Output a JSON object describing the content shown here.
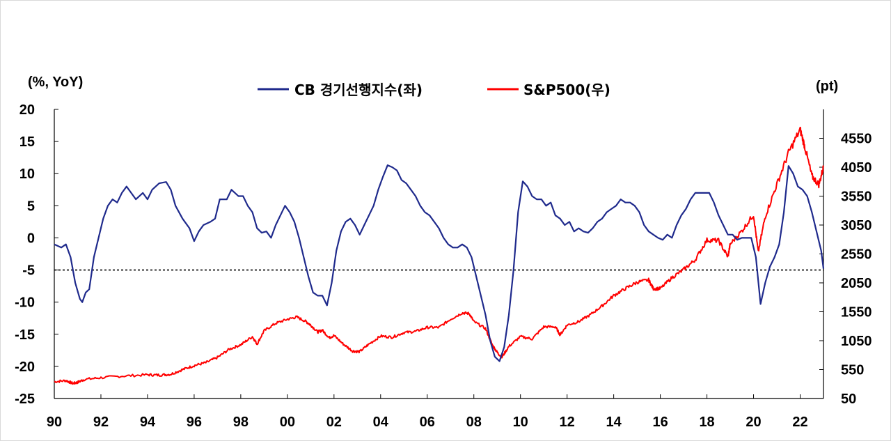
{
  "chart_data": {
    "type": "line",
    "left_unit": "(%, YoY)",
    "right_unit": "(pt)",
    "x_tick_labels": [
      "90",
      "92",
      "94",
      "96",
      "98",
      "00",
      "02",
      "04",
      "06",
      "08",
      "10",
      "12",
      "14",
      "16",
      "18",
      "20",
      "22"
    ],
    "x_range": [
      1990.0,
      2023.0
    ],
    "y_left_range": [
      -25,
      20
    ],
    "y_left_ticks": [
      20,
      15,
      10,
      5,
      0,
      -5,
      -10,
      -15,
      -20,
      -25
    ],
    "y_right_range": [
      50,
      5050
    ],
    "y_right_ticks": [
      4550,
      4050,
      3550,
      3050,
      2550,
      2050,
      1550,
      1050,
      550,
      50
    ],
    "reference_line": {
      "axis": "left",
      "value": -5,
      "style": "dotted"
    },
    "legend_position": "top-center",
    "colors": {
      "cb_lei": "#1f2a8c",
      "sp500": "#ff0000"
    },
    "series": [
      {
        "name": "CB 경기선행지수(좌)",
        "axis": "left",
        "color": "#1f2a8c",
        "points": [
          [
            1990.0,
            -1
          ],
          [
            1990.3,
            -1.5
          ],
          [
            1990.5,
            -1
          ],
          [
            1990.7,
            -3
          ],
          [
            1990.9,
            -7
          ],
          [
            1991.1,
            -9.5
          ],
          [
            1991.2,
            -10
          ],
          [
            1991.35,
            -8.5
          ],
          [
            1991.5,
            -8
          ],
          [
            1991.7,
            -3
          ],
          [
            1991.9,
            0
          ],
          [
            1992.1,
            3
          ],
          [
            1992.3,
            5
          ],
          [
            1992.5,
            6
          ],
          [
            1992.7,
            5.5
          ],
          [
            1992.9,
            7
          ],
          [
            1993.1,
            8
          ],
          [
            1993.3,
            7
          ],
          [
            1993.5,
            6
          ],
          [
            1993.8,
            7
          ],
          [
            1994.0,
            6
          ],
          [
            1994.2,
            7.5
          ],
          [
            1994.5,
            8.5
          ],
          [
            1994.8,
            8.7
          ],
          [
            1995.0,
            7.5
          ],
          [
            1995.2,
            5
          ],
          [
            1995.5,
            3
          ],
          [
            1995.8,
            1.5
          ],
          [
            1996.0,
            -0.5
          ],
          [
            1996.2,
            1
          ],
          [
            1996.4,
            2
          ],
          [
            1996.7,
            2.5
          ],
          [
            1996.9,
            3
          ],
          [
            1997.1,
            6
          ],
          [
            1997.4,
            6
          ],
          [
            1997.6,
            7.5
          ],
          [
            1997.9,
            6.5
          ],
          [
            1998.1,
            6.5
          ],
          [
            1998.3,
            5
          ],
          [
            1998.5,
            4
          ],
          [
            1998.7,
            1.5
          ],
          [
            1998.9,
            0.8
          ],
          [
            1999.1,
            1
          ],
          [
            1999.3,
            0
          ],
          [
            1999.5,
            2
          ],
          [
            1999.7,
            3.5
          ],
          [
            1999.9,
            5
          ],
          [
            2000.1,
            4
          ],
          [
            2000.3,
            2.5
          ],
          [
            2000.5,
            0
          ],
          [
            2000.7,
            -3
          ],
          [
            2000.9,
            -6
          ],
          [
            2001.1,
            -8.5
          ],
          [
            2001.3,
            -9
          ],
          [
            2001.5,
            -9
          ],
          [
            2001.7,
            -10.5
          ],
          [
            2001.9,
            -7
          ],
          [
            2002.1,
            -2
          ],
          [
            2002.3,
            1
          ],
          [
            2002.5,
            2.5
          ],
          [
            2002.7,
            3
          ],
          [
            2002.9,
            2
          ],
          [
            2003.1,
            0.5
          ],
          [
            2003.3,
            2
          ],
          [
            2003.5,
            3.5
          ],
          [
            2003.7,
            5
          ],
          [
            2003.9,
            7.5
          ],
          [
            2004.1,
            9.5
          ],
          [
            2004.3,
            11.3
          ],
          [
            2004.5,
            11
          ],
          [
            2004.7,
            10.5
          ],
          [
            2004.9,
            9
          ],
          [
            2005.1,
            8.5
          ],
          [
            2005.3,
            7.5
          ],
          [
            2005.5,
            6.5
          ],
          [
            2005.7,
            5
          ],
          [
            2005.9,
            4
          ],
          [
            2006.1,
            3.5
          ],
          [
            2006.3,
            2.5
          ],
          [
            2006.5,
            1.5
          ],
          [
            2006.7,
            0
          ],
          [
            2006.9,
            -1
          ],
          [
            2007.1,
            -1.5
          ],
          [
            2007.3,
            -1.5
          ],
          [
            2007.5,
            -1
          ],
          [
            2007.7,
            -1.5
          ],
          [
            2007.9,
            -3
          ],
          [
            2008.1,
            -6
          ],
          [
            2008.3,
            -9
          ],
          [
            2008.5,
            -12
          ],
          [
            2008.7,
            -16
          ],
          [
            2008.9,
            -18.5
          ],
          [
            2009.1,
            -19.2
          ],
          [
            2009.3,
            -17
          ],
          [
            2009.5,
            -12
          ],
          [
            2009.7,
            -5
          ],
          [
            2009.9,
            4
          ],
          [
            2010.1,
            8.8
          ],
          [
            2010.3,
            8
          ],
          [
            2010.5,
            6.5
          ],
          [
            2010.7,
            6
          ],
          [
            2010.9,
            6
          ],
          [
            2011.1,
            5
          ],
          [
            2011.3,
            5.5
          ],
          [
            2011.5,
            3.5
          ],
          [
            2011.7,
            3
          ],
          [
            2011.9,
            2
          ],
          [
            2012.1,
            2.5
          ],
          [
            2012.3,
            1
          ],
          [
            2012.5,
            1.5
          ],
          [
            2012.7,
            1
          ],
          [
            2012.9,
            0.8
          ],
          [
            2013.1,
            1.5
          ],
          [
            2013.3,
            2.5
          ],
          [
            2013.5,
            3
          ],
          [
            2013.7,
            4
          ],
          [
            2013.9,
            4.5
          ],
          [
            2014.1,
            5
          ],
          [
            2014.3,
            6
          ],
          [
            2014.5,
            5.5
          ],
          [
            2014.7,
            5.5
          ],
          [
            2014.9,
            5
          ],
          [
            2015.1,
            4
          ],
          [
            2015.3,
            2
          ],
          [
            2015.5,
            1
          ],
          [
            2015.7,
            0.5
          ],
          [
            2015.9,
            0
          ],
          [
            2016.1,
            -0.3
          ],
          [
            2016.3,
            0.5
          ],
          [
            2016.5,
            0
          ],
          [
            2016.7,
            2
          ],
          [
            2016.9,
            3.5
          ],
          [
            2017.1,
            4.5
          ],
          [
            2017.3,
            6
          ],
          [
            2017.5,
            7
          ],
          [
            2017.7,
            7
          ],
          [
            2017.9,
            7
          ],
          [
            2018.1,
            7
          ],
          [
            2018.3,
            5.5
          ],
          [
            2018.5,
            3.5
          ],
          [
            2018.7,
            2
          ],
          [
            2018.9,
            0.5
          ],
          [
            2019.1,
            0.5
          ],
          [
            2019.3,
            -0.3
          ],
          [
            2019.5,
            0
          ],
          [
            2019.7,
            0
          ],
          [
            2019.9,
            0
          ],
          [
            2020.1,
            -3
          ],
          [
            2020.3,
            -10.3
          ],
          [
            2020.5,
            -7
          ],
          [
            2020.7,
            -4.5
          ],
          [
            2020.9,
            -3
          ],
          [
            2021.1,
            -1
          ],
          [
            2021.3,
            4
          ],
          [
            2021.5,
            11.2
          ],
          [
            2021.7,
            10
          ],
          [
            2021.9,
            8
          ],
          [
            2022.1,
            7.5
          ],
          [
            2022.3,
            6.5
          ],
          [
            2022.5,
            4
          ],
          [
            2022.7,
            1
          ],
          [
            2022.9,
            -2
          ],
          [
            2023.0,
            -4.8
          ]
        ]
      },
      {
        "name": "S&P500(우)",
        "axis": "right",
        "color": "#ff0000",
        "points": [
          [
            1990.0,
            340
          ],
          [
            1990.5,
            360
          ],
          [
            1990.8,
            310
          ],
          [
            1991.0,
            330
          ],
          [
            1991.3,
            380
          ],
          [
            1992.0,
            410
          ],
          [
            1993.0,
            440
          ],
          [
            1994.0,
            460
          ],
          [
            1994.5,
            455
          ],
          [
            1995.0,
            470
          ],
          [
            1995.5,
            550
          ],
          [
            1996.0,
            620
          ],
          [
            1996.5,
            670
          ],
          [
            1997.0,
            760
          ],
          [
            1997.5,
            900
          ],
          [
            1998.0,
            980
          ],
          [
            1998.5,
            1120
          ],
          [
            1998.7,
            990
          ],
          [
            1999.0,
            1220
          ],
          [
            1999.5,
            1350
          ],
          [
            2000.0,
            1420
          ],
          [
            2000.4,
            1460
          ],
          [
            2000.8,
            1380
          ],
          [
            2001.0,
            1320
          ],
          [
            2001.3,
            1200
          ],
          [
            2001.5,
            1230
          ],
          [
            2001.8,
            1100
          ],
          [
            2002.0,
            1140
          ],
          [
            2002.4,
            990
          ],
          [
            2002.8,
            870
          ],
          [
            2003.1,
            860
          ],
          [
            2003.5,
            990
          ],
          [
            2004.0,
            1130
          ],
          [
            2004.5,
            1110
          ],
          [
            2005.0,
            1190
          ],
          [
            2005.5,
            1210
          ],
          [
            2006.0,
            1280
          ],
          [
            2006.5,
            1280
          ],
          [
            2007.0,
            1420
          ],
          [
            2007.5,
            1530
          ],
          [
            2007.8,
            1520
          ],
          [
            2008.0,
            1380
          ],
          [
            2008.5,
            1260
          ],
          [
            2008.8,
            970
          ],
          [
            2009.0,
            850
          ],
          [
            2009.2,
            760
          ],
          [
            2009.5,
            950
          ],
          [
            2010.0,
            1120
          ],
          [
            2010.5,
            1080
          ],
          [
            2011.0,
            1290
          ],
          [
            2011.5,
            1290
          ],
          [
            2011.7,
            1150
          ],
          [
            2012.0,
            1320
          ],
          [
            2012.5,
            1380
          ],
          [
            2013.0,
            1500
          ],
          [
            2013.5,
            1650
          ],
          [
            2014.0,
            1830
          ],
          [
            2014.5,
            1950
          ],
          [
            2015.0,
            2060
          ],
          [
            2015.5,
            2100
          ],
          [
            2015.7,
            1950
          ],
          [
            2016.0,
            1950
          ],
          [
            2016.5,
            2140
          ],
          [
            2017.0,
            2280
          ],
          [
            2017.5,
            2450
          ],
          [
            2018.0,
            2790
          ],
          [
            2018.5,
            2780
          ],
          [
            2018.9,
            2500
          ],
          [
            2019.0,
            2720
          ],
          [
            2019.5,
            2950
          ],
          [
            2020.0,
            3230
          ],
          [
            2020.2,
            2580
          ],
          [
            2020.5,
            3200
          ],
          [
            2021.0,
            3750
          ],
          [
            2021.5,
            4300
          ],
          [
            2022.0,
            4700
          ],
          [
            2022.2,
            4400
          ],
          [
            2022.5,
            3900
          ],
          [
            2022.8,
            3750
          ],
          [
            2023.0,
            4050
          ]
        ]
      }
    ]
  }
}
